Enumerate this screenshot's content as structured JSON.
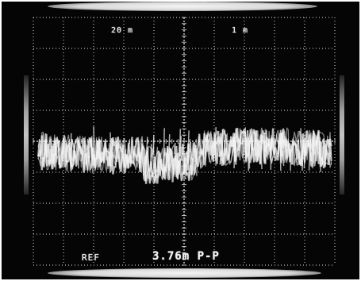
{
  "photo": {
    "subject": "oscilloscope-screen",
    "background": "#050505",
    "graticule_color": "#d9d9d9",
    "trace_color": "#f5f5f5",
    "readouts": {
      "top_left": "20 m",
      "top_right": "1 m",
      "bottom_left": "REF",
      "measurement": "3.76m P-P"
    }
  }
}
